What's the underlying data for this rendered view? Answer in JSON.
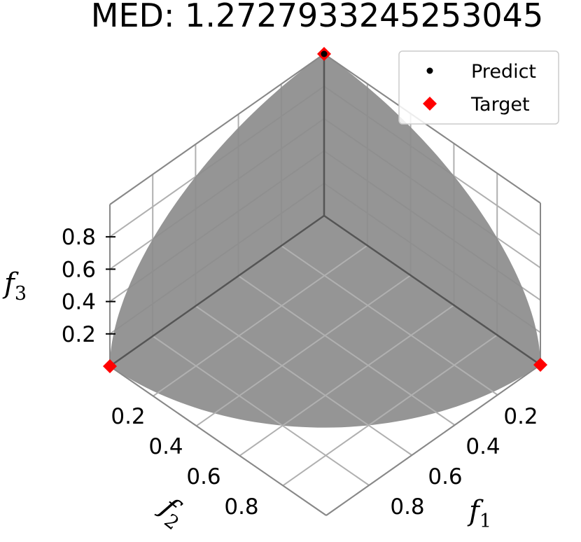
{
  "chart_data": {
    "type": "scatter3d",
    "title": "MED: 1.2727933245253045",
    "surface": "unit-sphere-octant",
    "axes": {
      "x": {
        "label": "f",
        "label_sub": "1",
        "ticks": [
          0.2,
          0.4,
          0.6,
          0.8
        ],
        "range": [
          0,
          1
        ]
      },
      "y": {
        "label": "f",
        "label_sub": "2",
        "ticks": [
          0.2,
          0.4,
          0.6,
          0.8
        ],
        "range": [
          0,
          1
        ]
      },
      "z": {
        "label": "f",
        "label_sub": "3",
        "ticks": [
          0.2,
          0.4,
          0.6,
          0.8
        ],
        "range": [
          0,
          1
        ]
      }
    },
    "grid": true,
    "legend": {
      "placement": "top-right"
    },
    "series": [
      {
        "name": "Predict",
        "marker": "circle",
        "color": "#000000",
        "points": [
          {
            "x": 0,
            "y": 0,
            "z": 1
          }
        ]
      },
      {
        "name": "Target",
        "marker": "diamond",
        "color": "#ff0000",
        "points": [
          {
            "x": 1,
            "y": 0,
            "z": 0
          },
          {
            "x": 0,
            "y": 1,
            "z": 0
          },
          {
            "x": 0,
            "y": 0,
            "z": 1
          }
        ]
      }
    ],
    "colors": {
      "surface": "#8c8c8c",
      "grid": "#b0b0b0",
      "pane_edge": "#555555"
    }
  }
}
